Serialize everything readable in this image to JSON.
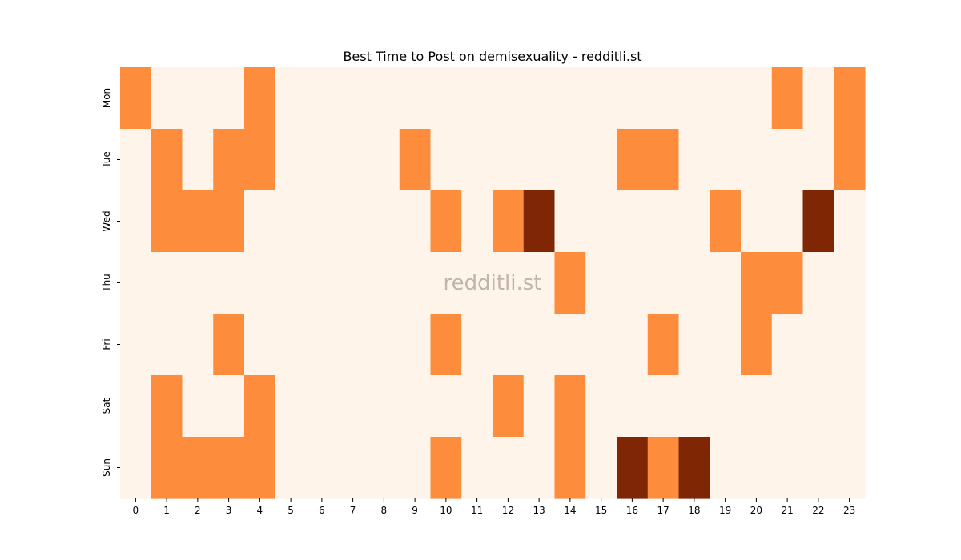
{
  "chart_data": {
    "type": "heatmap",
    "title": "Best Time to Post on demisexuality - redditli.st",
    "watermark": "redditli.st",
    "x_categories": [
      "0",
      "1",
      "2",
      "3",
      "4",
      "5",
      "6",
      "7",
      "8",
      "9",
      "10",
      "11",
      "12",
      "13",
      "14",
      "15",
      "16",
      "17",
      "18",
      "19",
      "20",
      "21",
      "22",
      "23"
    ],
    "y_categories": [
      "Mon",
      "Tue",
      "Wed",
      "Thu",
      "Fri",
      "Sat",
      "Sun"
    ],
    "values": [
      [
        1,
        0,
        0,
        0,
        1,
        0,
        0,
        0,
        0,
        0,
        0,
        0,
        0,
        0,
        0,
        0,
        0,
        0,
        0,
        0,
        0,
        1,
        0,
        1
      ],
      [
        0,
        1,
        0,
        1,
        1,
        0,
        0,
        0,
        0,
        1,
        0,
        0,
        0,
        0,
        0,
        0,
        1,
        1,
        0,
        0,
        0,
        0,
        0,
        1
      ],
      [
        0,
        1,
        1,
        1,
        0,
        0,
        0,
        0,
        0,
        0,
        1,
        0,
        1,
        2,
        0,
        0,
        0,
        0,
        0,
        1,
        0,
        0,
        2,
        0
      ],
      [
        0,
        0,
        0,
        0,
        0,
        0,
        0,
        0,
        0,
        0,
        0,
        0,
        0,
        0,
        1,
        0,
        0,
        0,
        0,
        0,
        1,
        1,
        0,
        0
      ],
      [
        0,
        0,
        0,
        1,
        0,
        0,
        0,
        0,
        0,
        0,
        1,
        0,
        0,
        0,
        0,
        0,
        0,
        1,
        0,
        0,
        1,
        0,
        0,
        0
      ],
      [
        0,
        1,
        0,
        0,
        1,
        0,
        0,
        0,
        0,
        0,
        0,
        0,
        1,
        0,
        1,
        0,
        0,
        0,
        0,
        0,
        0,
        0,
        0,
        0
      ],
      [
        0,
        1,
        1,
        1,
        1,
        0,
        0,
        0,
        0,
        0,
        1,
        0,
        0,
        0,
        1,
        0,
        2,
        1,
        2,
        0,
        0,
        0,
        0,
        0
      ]
    ],
    "colors": {
      "0": "#fff4e9",
      "1": "#fd8d3c",
      "2": "#7f2704"
    },
    "grid": false,
    "legend": "none"
  }
}
